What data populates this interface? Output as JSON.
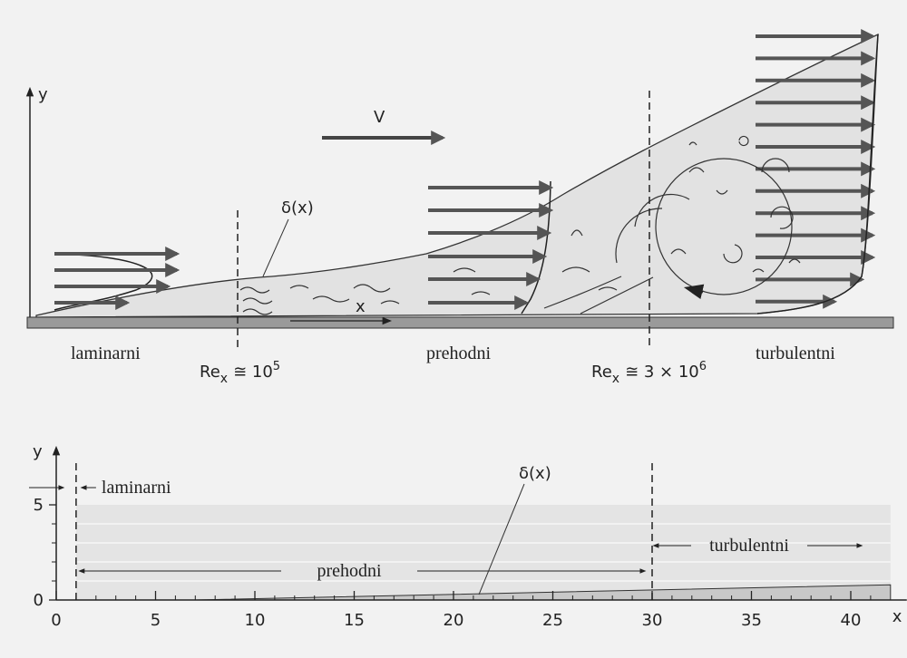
{
  "top": {
    "axis_y": "y",
    "velocity": "V",
    "delta": "δ(x)",
    "axis_x": "x",
    "regions": [
      "laminarni",
      "prehodni",
      "turbulentni"
    ],
    "re_laminar": {
      "base": "Re",
      "sub": "x",
      "text": "≅ 10",
      "sup": "5"
    },
    "re_turbulent": {
      "base": "Re",
      "sub": "x",
      "text": "≅ 3 × 10",
      "sup": "6"
    }
  },
  "bottom": {
    "axis_y": "y",
    "axis_x": "x",
    "delta": "δ(x)",
    "regions": [
      "laminarni",
      "prehodni",
      "turbulentni"
    ],
    "xlim": [
      0,
      42
    ],
    "ylim": [
      0,
      8
    ],
    "xticks": [
      0,
      5,
      10,
      15,
      20,
      25,
      30,
      35,
      40
    ],
    "yticks": [
      0,
      5
    ],
    "boundaries": [
      1,
      30
    ]
  }
}
